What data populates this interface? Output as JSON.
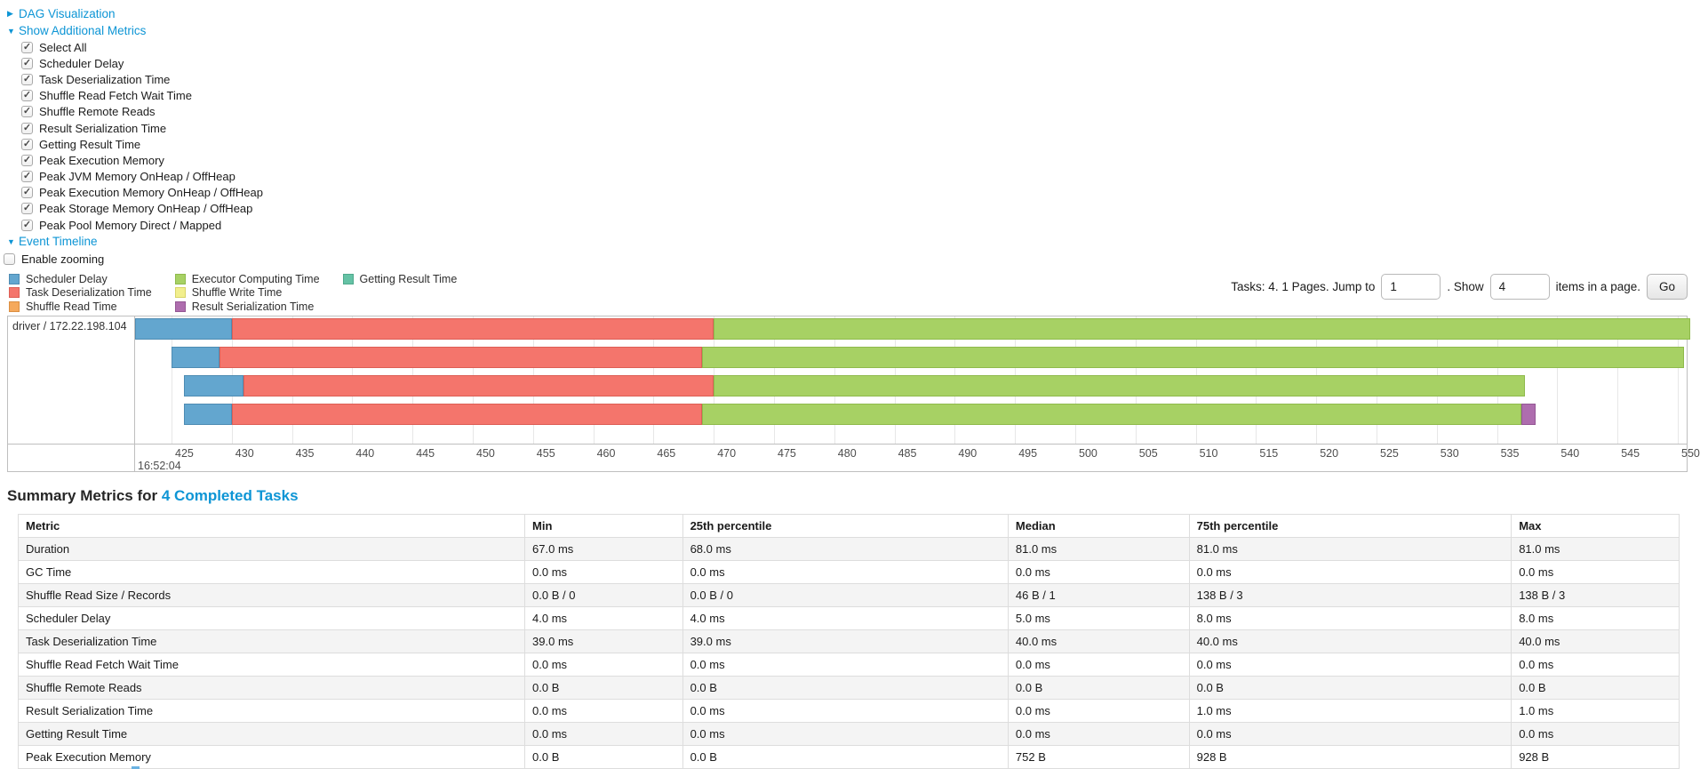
{
  "icons": {
    "collapsed_arrow": "▶",
    "expanded_arrow": "▼",
    "check": "✓"
  },
  "sections": {
    "dag_label": "DAG Visualization",
    "metrics_label": "Show Additional Metrics",
    "event_timeline_label": "Event Timeline",
    "enable_zooming_label": "Enable zooming"
  },
  "metrics_panel": {
    "items": [
      {
        "label": "Select All",
        "checked": true
      },
      {
        "label": "Scheduler Delay",
        "checked": true
      },
      {
        "label": "Task Deserialization Time",
        "checked": true
      },
      {
        "label": "Shuffle Read Fetch Wait Time",
        "checked": true
      },
      {
        "label": "Shuffle Remote Reads",
        "checked": true
      },
      {
        "label": "Result Serialization Time",
        "checked": true
      },
      {
        "label": "Getting Result Time",
        "checked": true
      },
      {
        "label": "Peak Execution Memory",
        "checked": true
      },
      {
        "label": "Peak JVM Memory OnHeap / OffHeap",
        "checked": true
      },
      {
        "label": "Peak Execution Memory OnHeap / OffHeap",
        "checked": true
      },
      {
        "label": "Peak Storage Memory OnHeap / OffHeap",
        "checked": true
      },
      {
        "label": "Peak Pool Memory Direct / Mapped",
        "checked": true
      }
    ]
  },
  "pagination": {
    "prefix": "Tasks: 4. 1 Pages. Jump to",
    "jump_value": "1",
    "mid": ". Show",
    "show_value": "4",
    "suffix": "items in a page.",
    "go_label": "Go"
  },
  "timeline": {
    "executor": "driver / 172.22.198.104",
    "legend": {
      "columns": [
        [
          "scheduler_delay",
          "deserialization",
          "shuffle_read"
        ],
        [
          "computing",
          "shuffle_write",
          "result_serialization"
        ],
        [
          "getting_result"
        ]
      ],
      "entries": {
        "scheduler_delay": {
          "label": "Scheduler Delay",
          "fill": "#63A6CF",
          "border": "#4E8CB3"
        },
        "deserialization": {
          "label": "Task Deserialization Time",
          "fill": "#F4756C",
          "border": "#DD5E55"
        },
        "shuffle_read": {
          "label": "Shuffle Read Time",
          "fill": "#F5A95C",
          "border": "#DB8F43"
        },
        "computing": {
          "label": "Executor Computing Time",
          "fill": "#A7D164",
          "border": "#8FBA4C"
        },
        "shuffle_write": {
          "label": "Shuffle Write Time",
          "fill": "#F2EF8D",
          "border": "#D9D569"
        },
        "result_serialization": {
          "label": "Result Serialization Time",
          "fill": "#AE6DAE",
          "border": "#945794"
        },
        "getting_result": {
          "label": "Getting Result Time",
          "fill": "#65C2A5",
          "border": "#4FA98C"
        }
      }
    },
    "axis": {
      "tick_labels": [
        "425",
        "430",
        "435",
        "440",
        "445",
        "450",
        "455",
        "460",
        "465",
        "470",
        "475",
        "480",
        "485",
        "490",
        "495",
        "500",
        "505",
        "510",
        "515",
        "520",
        "525",
        "530",
        "535",
        "540",
        "545",
        "550"
      ],
      "tick_start_ms": 425,
      "tick_step_ms": 5,
      "time_label": "16:52:04"
    },
    "tasks": [
      {
        "segments": [
          [
            "scheduler_delay",
            422.0,
            430.0
          ],
          [
            "deserialization",
            430.0,
            470.0
          ],
          [
            "computing",
            470.0,
            551.0
          ]
        ]
      },
      {
        "segments": [
          [
            "scheduler_delay",
            425.0,
            429.0
          ],
          [
            "deserialization",
            429.0,
            469.0
          ],
          [
            "computing",
            469.0,
            550.5
          ]
        ]
      },
      {
        "segments": [
          [
            "scheduler_delay",
            426.0,
            431.0
          ],
          [
            "deserialization",
            431.0,
            470.0
          ],
          [
            "computing",
            470.0,
            537.3
          ]
        ]
      },
      {
        "segments": [
          [
            "scheduler_delay",
            426.0,
            430.0
          ],
          [
            "deserialization",
            430.0,
            469.0
          ],
          [
            "computing",
            469.0,
            537.0
          ],
          [
            "result_serialization",
            537.0,
            538.2
          ]
        ]
      }
    ]
  },
  "summary": {
    "title_prefix": "Summary Metrics for",
    "title_link": "4 Completed Tasks",
    "table": {
      "headers": [
        "Metric",
        "Min",
        "25th percentile",
        "Median",
        "75th percentile",
        "Max"
      ],
      "col_widths_pct": [
        30.5,
        9.5,
        19.6,
        10.9,
        19.4,
        10.1
      ],
      "rows": [
        [
          "Duration",
          "67.0 ms",
          "68.0 ms",
          "81.0 ms",
          "81.0 ms",
          "81.0 ms"
        ],
        [
          "GC Time",
          "0.0 ms",
          "0.0 ms",
          "0.0 ms",
          "0.0 ms",
          "0.0 ms"
        ],
        [
          "Shuffle Read Size / Records",
          "0.0 B / 0",
          "0.0 B / 0",
          "46 B / 1",
          "138 B / 3",
          "138 B / 3"
        ],
        [
          "Scheduler Delay",
          "4.0 ms",
          "4.0 ms",
          "5.0 ms",
          "8.0 ms",
          "8.0 ms"
        ],
        [
          "Task Deserialization Time",
          "39.0 ms",
          "39.0 ms",
          "40.0 ms",
          "40.0 ms",
          "40.0 ms"
        ],
        [
          "Shuffle Read Fetch Wait Time",
          "0.0 ms",
          "0.0 ms",
          "0.0 ms",
          "0.0 ms",
          "0.0 ms"
        ],
        [
          "Shuffle Remote Reads",
          "0.0 B",
          "0.0 B",
          "0.0 B",
          "0.0 B",
          "0.0 B"
        ],
        [
          "Result Serialization Time",
          "0.0 ms",
          "0.0 ms",
          "0.0 ms",
          "1.0 ms",
          "1.0 ms"
        ],
        [
          "Getting Result Time",
          "0.0 ms",
          "0.0 ms",
          "0.0 ms",
          "0.0 ms",
          "0.0 ms"
        ],
        [
          "Peak Execution Memory",
          "0.0 B",
          "0.0 B",
          "752 B",
          "928 B",
          "928 B"
        ]
      ]
    }
  }
}
